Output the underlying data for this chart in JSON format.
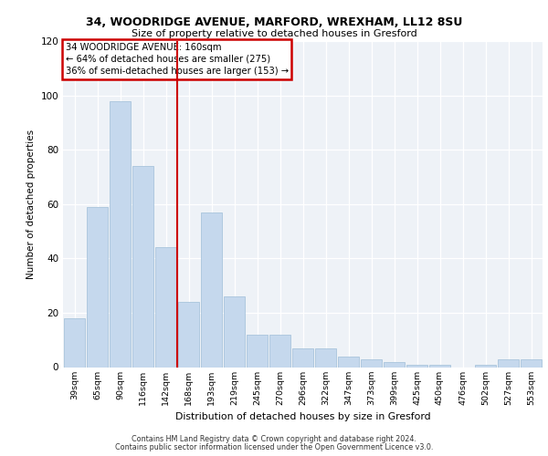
{
  "title1": "34, WOODRIDGE AVENUE, MARFORD, WREXHAM, LL12 8SU",
  "title2": "Size of property relative to detached houses in Gresford",
  "xlabel": "Distribution of detached houses by size in Gresford",
  "ylabel": "Number of detached properties",
  "categories": [
    "39sqm",
    "65sqm",
    "90sqm",
    "116sqm",
    "142sqm",
    "168sqm",
    "193sqm",
    "219sqm",
    "245sqm",
    "270sqm",
    "296sqm",
    "322sqm",
    "347sqm",
    "373sqm",
    "399sqm",
    "425sqm",
    "450sqm",
    "476sqm",
    "502sqm",
    "527sqm",
    "553sqm"
  ],
  "values": [
    18,
    59,
    98,
    74,
    44,
    24,
    57,
    26,
    12,
    12,
    7,
    7,
    4,
    3,
    2,
    1,
    1,
    0,
    1,
    3,
    3
  ],
  "bar_color": "#c5d8ed",
  "bar_edge_color": "#a8c4dc",
  "box_color": "#cc0000",
  "ylim": [
    0,
    120
  ],
  "yticks": [
    0,
    20,
    40,
    60,
    80,
    100,
    120
  ],
  "footer1": "Contains HM Land Registry data © Crown copyright and database right 2024.",
  "footer2": "Contains public sector information licensed under the Open Government Licence v3.0."
}
